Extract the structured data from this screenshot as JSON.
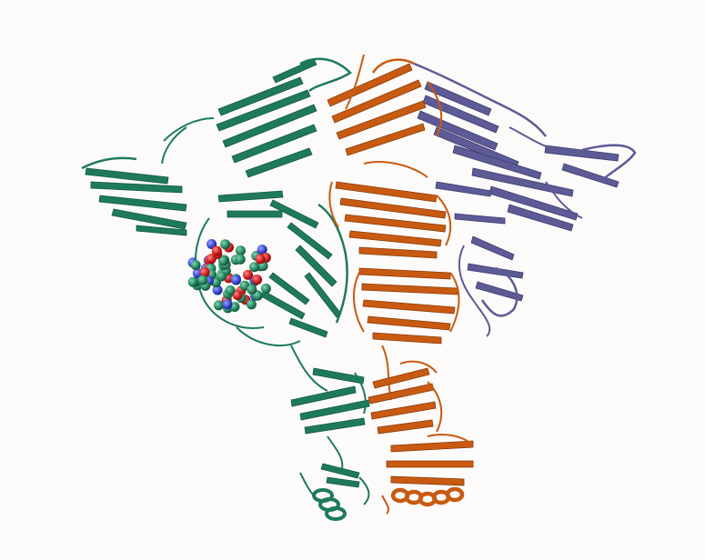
{
  "scene": {
    "background": "#fcfbfa",
    "chains": [
      {
        "name": "chain-a",
        "color": "#1f7a5c"
      },
      {
        "name": "chain-b",
        "color": "#c85a12"
      },
      {
        "name": "chain-c",
        "color": "#5d5b96"
      }
    ],
    "ligand_colors": {
      "carbon": "#2b8a63",
      "oxygen": "#d42020",
      "nitrogen": "#3a4ad8"
    }
  }
}
